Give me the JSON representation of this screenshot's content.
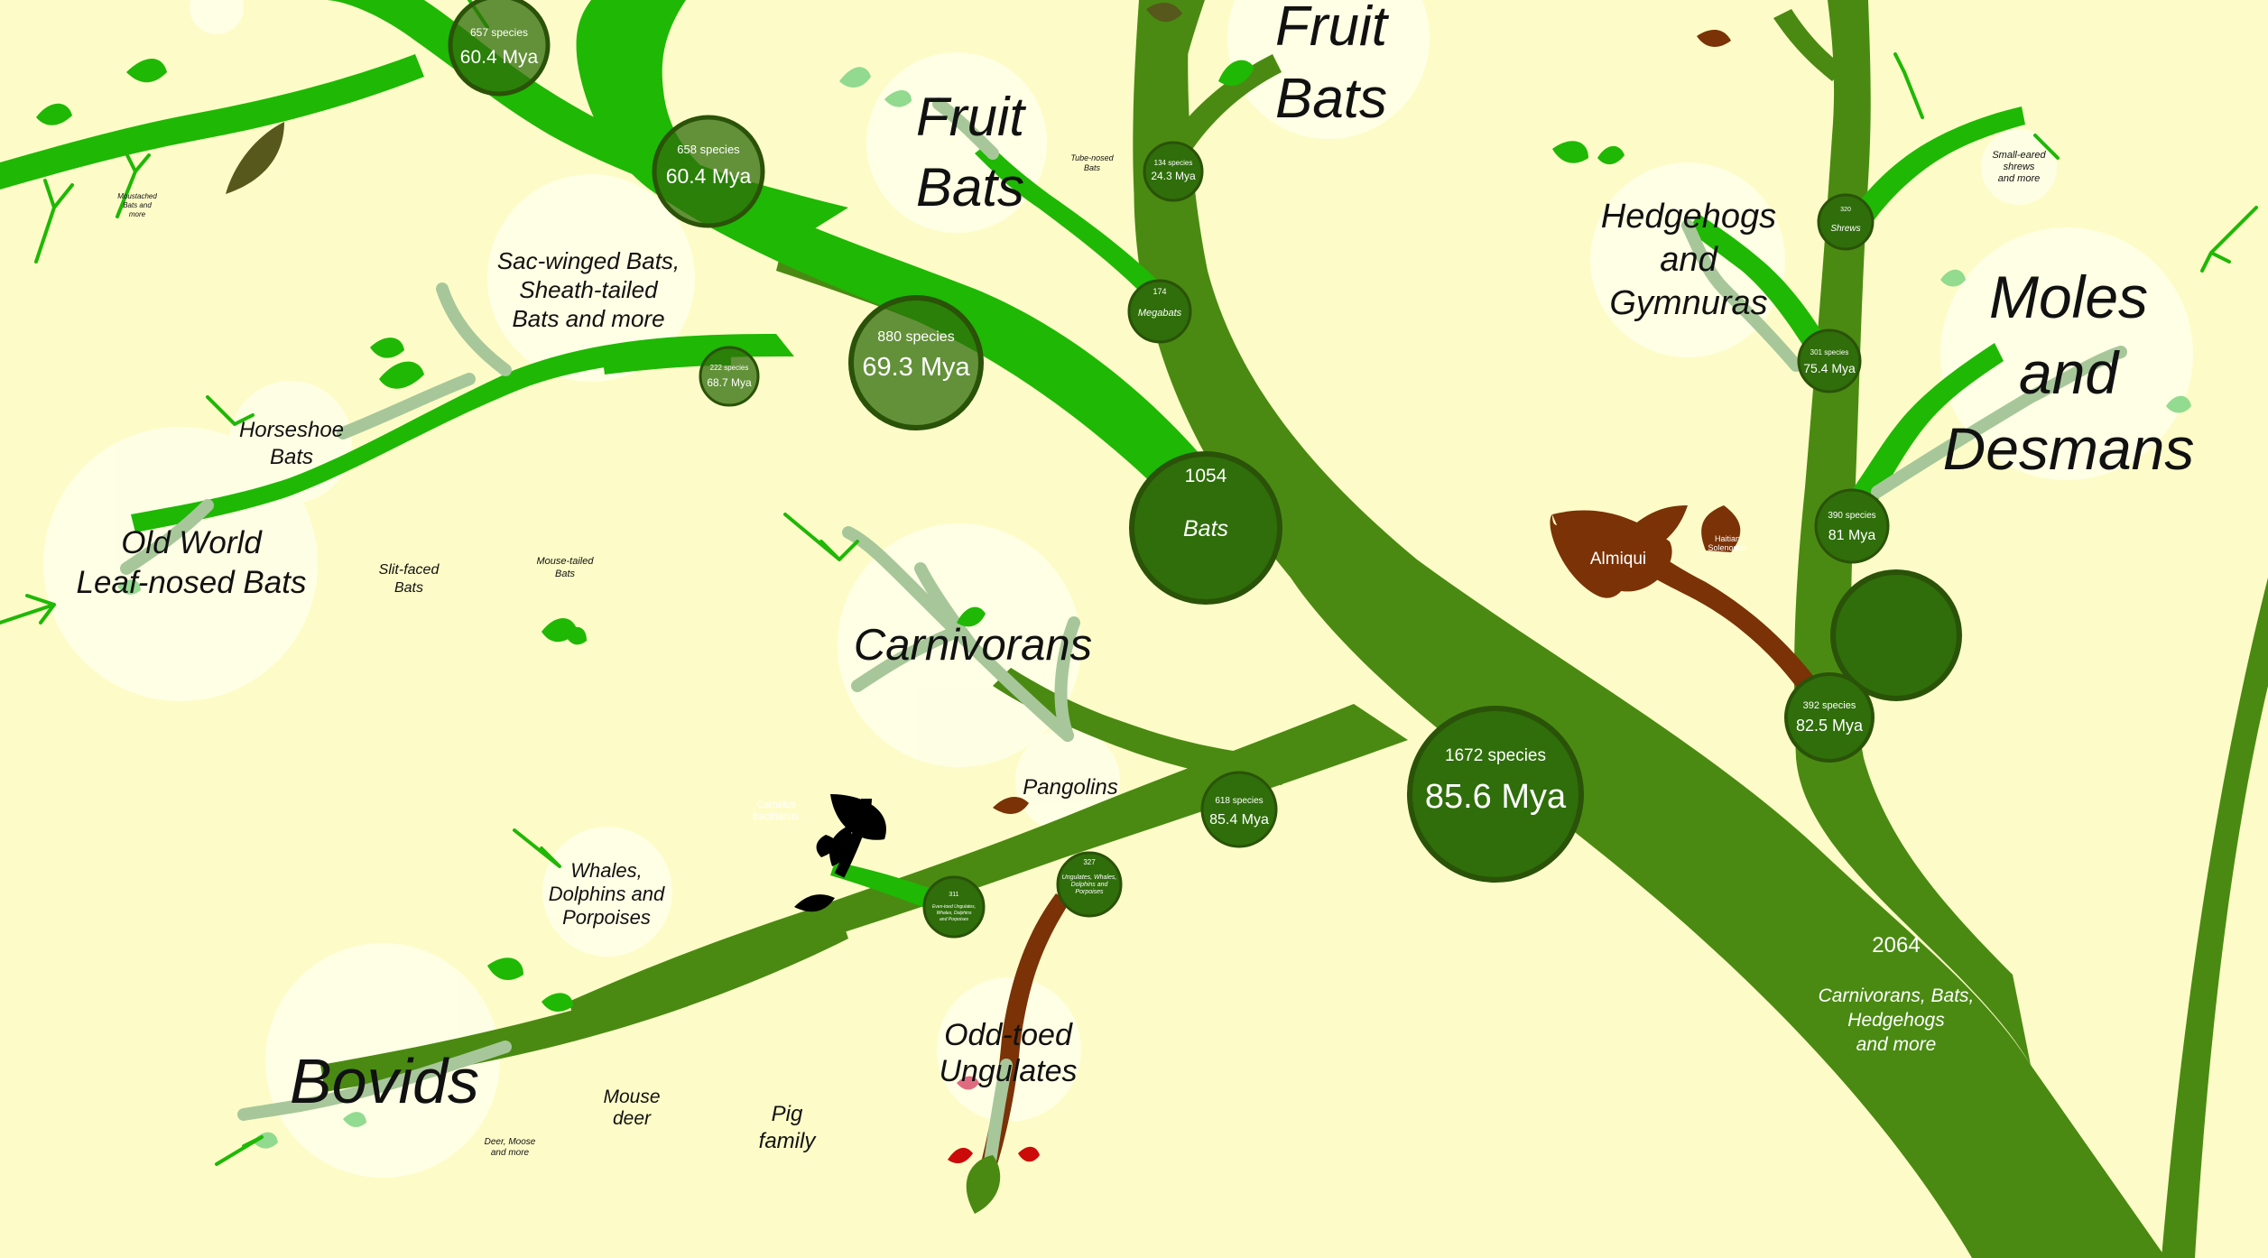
{
  "colors": {
    "background": "#fdfcc8",
    "trunk": "#4a8a12",
    "branch_bright": "#1fb805",
    "branch_pale": "#a7c79a",
    "leaf_light": "#8cd98c",
    "node_fill": "#2f6e0a",
    "node_ring": "#2a5208",
    "highlight": "#ffffe8",
    "solenodon_brown": "#7a3206",
    "camel_black": "#000000"
  },
  "nodes": {
    "root": {
      "count": "2064",
      "name_lines": [
        "Carnivorans, Bats,",
        "Hedgehogs",
        "and more"
      ]
    },
    "n1672": {
      "species": "1672 species",
      "age": "85.6 Mya"
    },
    "bats": {
      "count": "1054",
      "name": "Bats"
    },
    "n880": {
      "species": "880 species",
      "age": "69.3 Mya"
    },
    "n658": {
      "species": "658 species",
      "age": "60.4 Mya"
    },
    "n657": {
      "species": "657 species",
      "age": "60.4 Mya"
    },
    "n222": {
      "species": "222 species",
      "age": "68.7 Mya"
    },
    "megabats": {
      "species": "174",
      "name": "Megabats"
    },
    "n134": {
      "species": "134 species",
      "age": "24.3 Mya"
    },
    "n618": {
      "species": "618 species",
      "age": "85.4 Mya"
    },
    "n327": {
      "species": "327",
      "name_lines": [
        "Ungulates, Whales,",
        "Dolphins and",
        "Porpoises"
      ]
    },
    "n311": {
      "species": "311",
      "name_lines": [
        "Even-toed Ungulates,",
        "Whales, Dolphins",
        "and Porpoises"
      ]
    },
    "n392": {
      "species": "392 species",
      "age": "82.5 Mya"
    },
    "n390": {
      "species": "390 species",
      "age": "81 Mya"
    },
    "n301": {
      "species": "301 species",
      "age": "75.4 Mya"
    },
    "shrews": {
      "species": "320",
      "name": "Shrews"
    }
  },
  "labels": {
    "fruit_bats_1": [
      "Fruit",
      "Bats"
    ],
    "fruit_bats_2": [
      "Fruit",
      "Bats"
    ],
    "tube_nosed": [
      "Tube-nosed",
      "Bats"
    ],
    "sac_winged": [
      "Sac-winged Bats,",
      "Sheath-tailed",
      "Bats and more"
    ],
    "horseshoe": [
      "Horseshoe",
      "Bats"
    ],
    "old_world": [
      "Old World",
      "Leaf-nosed Bats"
    ],
    "slit_faced": [
      "Slit-faced",
      "Bats"
    ],
    "mouse_tailed": [
      "Mouse-tailed",
      "Bats"
    ],
    "moustached": [
      "Moustached",
      "Bats and",
      "more"
    ],
    "carnivorans": "Carnivorans",
    "pangolins": "Pangolins",
    "whales": [
      "Whales,",
      "Dolphins and",
      "Porpoises"
    ],
    "bovids": "Bovids",
    "deer_moose": [
      "Deer, Moose",
      "and more"
    ],
    "mouse_deer": [
      "Mouse",
      "deer"
    ],
    "pig_family": [
      "Pig",
      "family"
    ],
    "odd_toed": [
      "Odd-toed",
      "Ungulates"
    ],
    "camelus": [
      "Camelus",
      "bactrianus"
    ],
    "hedgehogs": [
      "Hedgehogs",
      "and",
      "Gymnuras"
    ],
    "moles": [
      "Moles",
      "and",
      "Desmans"
    ],
    "small_eared": [
      "Small-eared",
      "shrews",
      "and more"
    ],
    "almiqui": "Almiqui",
    "haitian_solenodon": [
      "Haitian",
      "Solenodon"
    ]
  }
}
